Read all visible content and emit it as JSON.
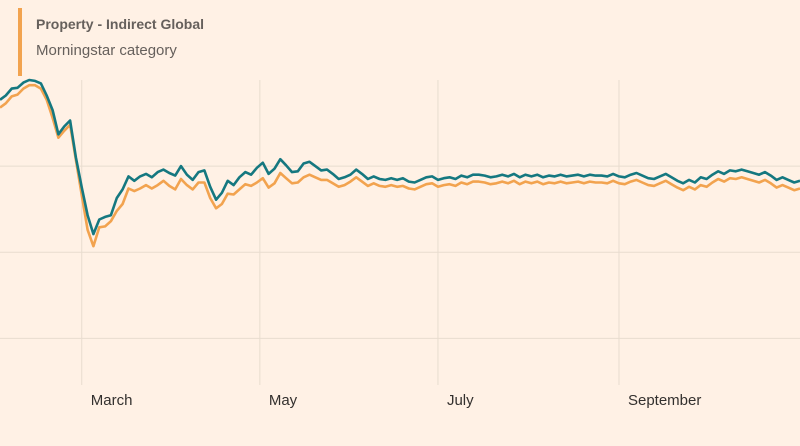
{
  "legend": {
    "fund_name": "Property - Indirect Global",
    "category_label": "Morningstar category"
  },
  "colors": {
    "fund": "#157880",
    "category": "#f2a34f",
    "grid": "#e8dccf",
    "background": "#fff1e5"
  },
  "chart_data": {
    "type": "line",
    "title": "",
    "xlabel": "",
    "ylabel": "",
    "grid": true,
    "legend_position": "top-left",
    "x_ticks": [
      {
        "label": "March",
        "x": 60
      },
      {
        "label": "May",
        "x": 121
      },
      {
        "label": "July",
        "x": 182
      },
      {
        "label": "September",
        "x": 244
      }
    ],
    "y_gridlines": [
      -10,
      -20,
      -30
    ],
    "xlim": [
      32,
      306
    ],
    "ylim": [
      -36,
      0
    ],
    "series": [
      {
        "name": "Property - Indirect Global",
        "color": "#157880",
        "points": [
          [
            32,
            -2.3
          ],
          [
            34,
            -1.8
          ],
          [
            36,
            -1.0
          ],
          [
            38,
            -0.9
          ],
          [
            40,
            -0.3
          ],
          [
            42,
            0.0
          ],
          [
            44,
            -0.1
          ],
          [
            46,
            -0.4
          ],
          [
            48,
            -1.8
          ],
          [
            50,
            -3.5
          ],
          [
            52,
            -6.3
          ],
          [
            54,
            -5.4
          ],
          [
            56,
            -4.7
          ],
          [
            58,
            -9.0
          ],
          [
            60,
            -12.5
          ],
          [
            62,
            -15.7
          ],
          [
            64,
            -17.9
          ],
          [
            66,
            -16.2
          ],
          [
            68,
            -15.9
          ],
          [
            70,
            -15.7
          ],
          [
            72,
            -13.7
          ],
          [
            74,
            -12.7
          ],
          [
            76,
            -11.2
          ],
          [
            78,
            -11.7
          ],
          [
            80,
            -11.2
          ],
          [
            82,
            -10.9
          ],
          [
            84,
            -11.3
          ],
          [
            86,
            -10.7
          ],
          [
            88,
            -10.4
          ],
          [
            90,
            -10.8
          ],
          [
            92,
            -11.1
          ],
          [
            94,
            -10.0
          ],
          [
            96,
            -11.0
          ],
          [
            98,
            -11.6
          ],
          [
            100,
            -10.7
          ],
          [
            102,
            -10.5
          ],
          [
            104,
            -12.4
          ],
          [
            106,
            -13.9
          ],
          [
            108,
            -13.1
          ],
          [
            110,
            -11.7
          ],
          [
            112,
            -12.2
          ],
          [
            114,
            -11.3
          ],
          [
            116,
            -10.7
          ],
          [
            118,
            -11.0
          ],
          [
            120,
            -10.2
          ],
          [
            122,
            -9.6
          ],
          [
            124,
            -10.9
          ],
          [
            126,
            -10.3
          ],
          [
            128,
            -9.2
          ],
          [
            130,
            -9.9
          ],
          [
            132,
            -10.7
          ],
          [
            134,
            -10.6
          ],
          [
            136,
            -9.7
          ],
          [
            138,
            -9.5
          ],
          [
            140,
            -10.0
          ],
          [
            142,
            -10.5
          ],
          [
            144,
            -10.4
          ],
          [
            146,
            -10.9
          ],
          [
            148,
            -11.5
          ],
          [
            150,
            -11.3
          ],
          [
            152,
            -11.0
          ],
          [
            154,
            -10.4
          ],
          [
            156,
            -10.9
          ],
          [
            158,
            -11.5
          ],
          [
            160,
            -11.2
          ],
          [
            162,
            -11.5
          ],
          [
            164,
            -11.6
          ],
          [
            166,
            -11.4
          ],
          [
            168,
            -11.6
          ],
          [
            170,
            -11.4
          ],
          [
            172,
            -11.8
          ],
          [
            174,
            -11.9
          ],
          [
            176,
            -11.6
          ],
          [
            178,
            -11.3
          ],
          [
            180,
            -11.2
          ],
          [
            182,
            -11.6
          ],
          [
            184,
            -11.4
          ],
          [
            186,
            -11.3
          ],
          [
            188,
            -11.5
          ],
          [
            190,
            -11.1
          ],
          [
            192,
            -11.3
          ],
          [
            194,
            -11.0
          ],
          [
            196,
            -11.0
          ],
          [
            198,
            -11.1
          ],
          [
            200,
            -11.3
          ],
          [
            202,
            -11.2
          ],
          [
            204,
            -11.0
          ],
          [
            206,
            -11.2
          ],
          [
            208,
            -10.9
          ],
          [
            210,
            -11.3
          ],
          [
            212,
            -11.0
          ],
          [
            214,
            -11.2
          ],
          [
            216,
            -11.0
          ],
          [
            218,
            -11.3
          ],
          [
            220,
            -11.1
          ],
          [
            222,
            -11.2
          ],
          [
            224,
            -11.0
          ],
          [
            226,
            -11.2
          ],
          [
            228,
            -11.1
          ],
          [
            230,
            -11.0
          ],
          [
            232,
            -11.2
          ],
          [
            234,
            -11.0
          ],
          [
            236,
            -11.1
          ],
          [
            238,
            -11.1
          ],
          [
            240,
            -11.2
          ],
          [
            242,
            -10.9
          ],
          [
            244,
            -11.2
          ],
          [
            246,
            -11.3
          ],
          [
            248,
            -11.0
          ],
          [
            250,
            -10.8
          ],
          [
            252,
            -11.1
          ],
          [
            254,
            -11.4
          ],
          [
            256,
            -11.5
          ],
          [
            258,
            -11.2
          ],
          [
            260,
            -10.9
          ],
          [
            262,
            -11.3
          ],
          [
            264,
            -11.7
          ],
          [
            266,
            -12.0
          ],
          [
            268,
            -11.6
          ],
          [
            270,
            -11.9
          ],
          [
            272,
            -11.3
          ],
          [
            274,
            -11.5
          ],
          [
            276,
            -11.0
          ],
          [
            278,
            -10.6
          ],
          [
            280,
            -10.9
          ],
          [
            282,
            -10.5
          ],
          [
            284,
            -10.6
          ],
          [
            286,
            -10.4
          ],
          [
            288,
            -10.6
          ],
          [
            290,
            -10.8
          ],
          [
            292,
            -11.0
          ],
          [
            294,
            -10.7
          ],
          [
            296,
            -11.1
          ],
          [
            298,
            -11.6
          ],
          [
            300,
            -11.3
          ],
          [
            302,
            -11.6
          ],
          [
            304,
            -11.9
          ],
          [
            306,
            -11.7
          ]
        ]
      },
      {
        "name": "Morningstar category",
        "color": "#f2a34f",
        "points": [
          [
            32,
            -3.2
          ],
          [
            34,
            -2.7
          ],
          [
            36,
            -1.9
          ],
          [
            38,
            -1.7
          ],
          [
            40,
            -1.0
          ],
          [
            42,
            -0.6
          ],
          [
            44,
            -0.6
          ],
          [
            46,
            -1.0
          ],
          [
            48,
            -2.3
          ],
          [
            50,
            -4.4
          ],
          [
            52,
            -6.7
          ],
          [
            54,
            -5.9
          ],
          [
            56,
            -5.2
          ],
          [
            58,
            -9.3
          ],
          [
            60,
            -13.4
          ],
          [
            62,
            -17.4
          ],
          [
            64,
            -19.3
          ],
          [
            66,
            -17.1
          ],
          [
            68,
            -17.0
          ],
          [
            70,
            -16.4
          ],
          [
            72,
            -15.2
          ],
          [
            74,
            -14.4
          ],
          [
            76,
            -12.6
          ],
          [
            78,
            -12.9
          ],
          [
            80,
            -12.6
          ],
          [
            82,
            -12.2
          ],
          [
            84,
            -12.6
          ],
          [
            86,
            -12.2
          ],
          [
            88,
            -11.7
          ],
          [
            90,
            -12.3
          ],
          [
            92,
            -12.7
          ],
          [
            94,
            -11.5
          ],
          [
            96,
            -12.2
          ],
          [
            98,
            -12.7
          ],
          [
            100,
            -11.9
          ],
          [
            102,
            -11.9
          ],
          [
            104,
            -13.7
          ],
          [
            106,
            -14.9
          ],
          [
            108,
            -14.4
          ],
          [
            110,
            -13.2
          ],
          [
            112,
            -13.3
          ],
          [
            114,
            -12.7
          ],
          [
            116,
            -12.1
          ],
          [
            118,
            -12.3
          ],
          [
            120,
            -11.9
          ],
          [
            122,
            -11.4
          ],
          [
            124,
            -12.5
          ],
          [
            126,
            -12.0
          ],
          [
            128,
            -10.8
          ],
          [
            130,
            -11.4
          ],
          [
            132,
            -12.0
          ],
          [
            134,
            -11.9
          ],
          [
            136,
            -11.3
          ],
          [
            138,
            -11.0
          ],
          [
            140,
            -11.3
          ],
          [
            142,
            -11.6
          ],
          [
            144,
            -11.6
          ],
          [
            146,
            -12.0
          ],
          [
            148,
            -12.4
          ],
          [
            150,
            -12.2
          ],
          [
            152,
            -11.8
          ],
          [
            154,
            -11.3
          ],
          [
            156,
            -11.8
          ],
          [
            158,
            -12.3
          ],
          [
            160,
            -12.0
          ],
          [
            162,
            -12.3
          ],
          [
            164,
            -12.4
          ],
          [
            166,
            -12.2
          ],
          [
            168,
            -12.4
          ],
          [
            170,
            -12.3
          ],
          [
            172,
            -12.6
          ],
          [
            174,
            -12.7
          ],
          [
            176,
            -12.4
          ],
          [
            178,
            -12.1
          ],
          [
            180,
            -12.0
          ],
          [
            182,
            -12.4
          ],
          [
            184,
            -12.2
          ],
          [
            186,
            -12.1
          ],
          [
            188,
            -12.3
          ],
          [
            190,
            -11.9
          ],
          [
            192,
            -12.1
          ],
          [
            194,
            -11.8
          ],
          [
            196,
            -11.8
          ],
          [
            198,
            -11.9
          ],
          [
            200,
            -12.1
          ],
          [
            202,
            -12.0
          ],
          [
            204,
            -11.8
          ],
          [
            206,
            -12.0
          ],
          [
            208,
            -11.7
          ],
          [
            210,
            -12.1
          ],
          [
            212,
            -11.8
          ],
          [
            214,
            -12.0
          ],
          [
            216,
            -11.8
          ],
          [
            218,
            -12.1
          ],
          [
            220,
            -11.9
          ],
          [
            222,
            -12.0
          ],
          [
            224,
            -11.8
          ],
          [
            226,
            -12.0
          ],
          [
            228,
            -11.9
          ],
          [
            230,
            -11.8
          ],
          [
            232,
            -12.0
          ],
          [
            234,
            -11.8
          ],
          [
            236,
            -11.9
          ],
          [
            238,
            -11.9
          ],
          [
            240,
            -12.0
          ],
          [
            242,
            -11.7
          ],
          [
            244,
            -12.0
          ],
          [
            246,
            -12.1
          ],
          [
            248,
            -11.8
          ],
          [
            250,
            -11.6
          ],
          [
            252,
            -11.9
          ],
          [
            254,
            -12.2
          ],
          [
            256,
            -12.3
          ],
          [
            258,
            -12.0
          ],
          [
            260,
            -11.7
          ],
          [
            262,
            -12.1
          ],
          [
            264,
            -12.5
          ],
          [
            266,
            -12.8
          ],
          [
            268,
            -12.4
          ],
          [
            270,
            -12.7
          ],
          [
            272,
            -12.2
          ],
          [
            274,
            -12.4
          ],
          [
            276,
            -11.9
          ],
          [
            278,
            -11.5
          ],
          [
            280,
            -11.8
          ],
          [
            282,
            -11.4
          ],
          [
            284,
            -11.5
          ],
          [
            286,
            -11.3
          ],
          [
            288,
            -11.5
          ],
          [
            290,
            -11.7
          ],
          [
            292,
            -11.9
          ],
          [
            294,
            -11.6
          ],
          [
            296,
            -12.0
          ],
          [
            298,
            -12.5
          ],
          [
            300,
            -12.2
          ],
          [
            302,
            -12.5
          ],
          [
            304,
            -12.8
          ],
          [
            306,
            -12.6
          ]
        ]
      }
    ]
  }
}
